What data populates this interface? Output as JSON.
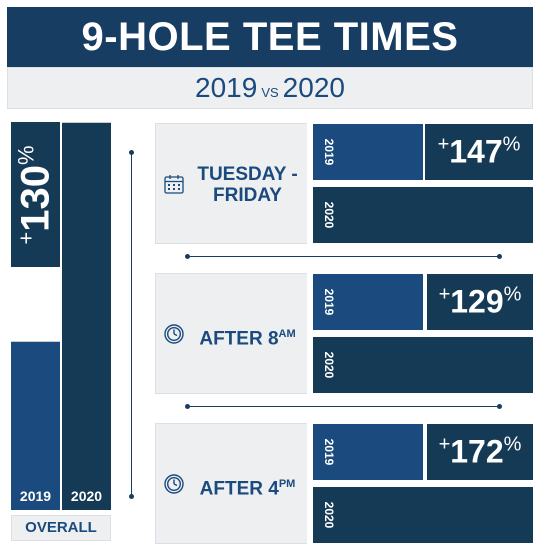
{
  "header": {
    "title": "9-HOLE TEE TIMES",
    "year_a": "2019",
    "vs": "VS",
    "year_b": "2020"
  },
  "colors": {
    "y2019": "#1a4a7e",
    "y2020": "#153a55",
    "panel": "#eeeff1"
  },
  "overall": {
    "label": "OVERALL",
    "change_sign": "+",
    "change_value": "130",
    "change_unit": "%"
  },
  "chart_data": {
    "type": "bar",
    "categories": [
      "TUESDAY - FRIDAY",
      "AFTER 8AM",
      "AFTER 4PM",
      "OVERALL"
    ],
    "series": [
      {
        "name": "2019",
        "values": [
          100,
          100,
          100,
          100
        ]
      },
      {
        "name": "2020",
        "values": [
          247,
          229,
          272,
          230
        ]
      }
    ],
    "percent_change": [
      147,
      129,
      172,
      130
    ],
    "title": "9-HOLE TEE TIMES",
    "subtitle": "2019 VS 2020"
  },
  "groups": [
    {
      "label_line1": "TUESDAY -",
      "label_line2": "FRIDAY",
      "icon": "calendar-icon",
      "year_a": "2019",
      "year_b": "2020",
      "change_sign": "+",
      "change_value": "147",
      "change_unit": "%"
    },
    {
      "label_main": "AFTER 8",
      "label_sup": "AM",
      "icon": "clock-icon",
      "year_a": "2019",
      "year_b": "2020",
      "change_sign": "+",
      "change_value": "129",
      "change_unit": "%"
    },
    {
      "label_main": "AFTER 4",
      "label_sup": "PM",
      "icon": "clock-icon",
      "year_a": "2019",
      "year_b": "2020",
      "change_sign": "+",
      "change_value": "172",
      "change_unit": "%"
    }
  ]
}
